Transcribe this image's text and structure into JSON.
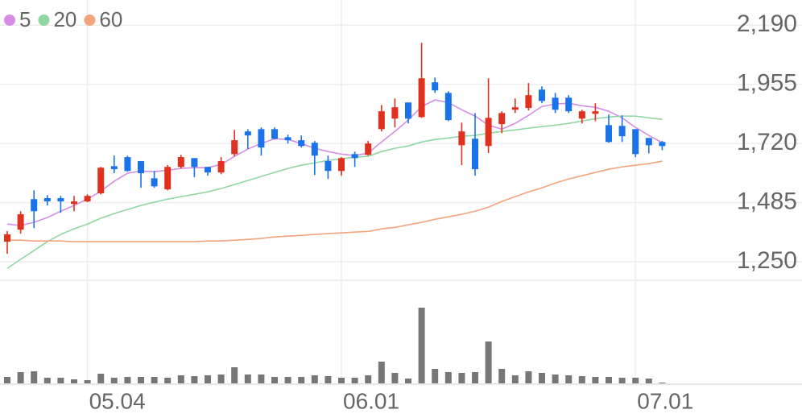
{
  "chart_data": {
    "type": "candlestick",
    "categories": [
      null,
      null,
      null,
      null,
      null,
      null,
      "05.04",
      null,
      null,
      null,
      null,
      null,
      null,
      null,
      null,
      null,
      null,
      null,
      null,
      null,
      null,
      null,
      null,
      null,
      null,
      "06.01",
      null,
      null,
      null,
      null,
      null,
      null,
      null,
      null,
      null,
      null,
      null,
      null,
      null,
      null,
      null,
      null,
      null,
      null,
      null,
      null,
      null,
      "07.01",
      null,
      null
    ],
    "open": [
      1330,
      1378,
      1499,
      1503,
      1503,
      1480,
      1490,
      1522,
      1630,
      1666,
      1650,
      1582,
      1538,
      1627,
      1662,
      1627,
      1605,
      1678,
      1768,
      1777,
      1777,
      1745,
      1733,
      1723,
      1650,
      1611,
      1678,
      1675,
      1777,
      1819,
      1883,
      1825,
      1963,
      1921,
      1713,
      1739,
      1710,
      1797,
      1854,
      1861,
      1934,
      1902,
      1902,
      1819,
      1838,
      1793,
      1790,
      1777,
      1742,
      1726
    ],
    "high": [
      1372,
      1451,
      1534,
      1515,
      1512,
      1512,
      1518,
      1627,
      1672,
      1672,
      1650,
      1611,
      1634,
      1675,
      1662,
      1627,
      1666,
      1774,
      1777,
      1784,
      1784,
      1755,
      1752,
      1730,
      1672,
      1666,
      1688,
      1730,
      1873,
      1899,
      1883,
      2120,
      1982,
      1928,
      1803,
      1841,
      1979,
      1848,
      1899,
      1960,
      1947,
      1921,
      1912,
      1854,
      1880,
      1835,
      1832,
      1777,
      1742,
      1730
    ],
    "low": [
      1282,
      1362,
      1384,
      1474,
      1445,
      1451,
      1487,
      1518,
      1602,
      1608,
      1544,
      1544,
      1534,
      1621,
      1586,
      1592,
      1598,
      1669,
      1698,
      1672,
      1736,
      1720,
      1704,
      1595,
      1579,
      1592,
      1627,
      1672,
      1768,
      1784,
      1800,
      1822,
      1921,
      1809,
      1634,
      1592,
      1682,
      1761,
      1841,
      1851,
      1880,
      1841,
      1841,
      1800,
      1809,
      1723,
      1726,
      1666,
      1681,
      1694
    ],
    "close": [
      1359,
      1439,
      1451,
      1490,
      1490,
      1490,
      1512,
      1624,
      1618,
      1611,
      1602,
      1550,
      1627,
      1666,
      1627,
      1605,
      1650,
      1733,
      1752,
      1704,
      1739,
      1733,
      1710,
      1672,
      1611,
      1662,
      1662,
      1720,
      1848,
      1864,
      1819,
      1979,
      1931,
      1813,
      1768,
      1618,
      1822,
      1841,
      1864,
      1912,
      1889,
      1854,
      1848,
      1848,
      1848,
      1726,
      1749,
      1678,
      1713,
      1710
    ],
    "up_color": "#e0301e",
    "down_color": "#1a73e8",
    "series": [
      {
        "name": "5",
        "color": "#d58de6",
        "values": [
          1400,
          1394,
          1407,
          1426,
          1451,
          1474,
          1499,
          1531,
          1570,
          1602,
          1611,
          1608,
          1614,
          1621,
          1624,
          1624,
          1637,
          1669,
          1698,
          1720,
          1739,
          1736,
          1720,
          1701,
          1688,
          1678,
          1672,
          1682,
          1726,
          1768,
          1813,
          1867,
          1893,
          1883,
          1854,
          1829,
          1793,
          1777,
          1800,
          1832,
          1867,
          1877,
          1880,
          1870,
          1864,
          1848,
          1822,
          1784,
          1752,
          1723
        ]
      },
      {
        "name": "20",
        "color": "#8fd6a2",
        "values": [
          1224,
          1260,
          1295,
          1330,
          1359,
          1381,
          1400,
          1423,
          1442,
          1458,
          1474,
          1487,
          1499,
          1509,
          1518,
          1528,
          1541,
          1557,
          1573,
          1589,
          1605,
          1621,
          1634,
          1643,
          1653,
          1659,
          1666,
          1669,
          1688,
          1701,
          1710,
          1726,
          1736,
          1742,
          1749,
          1752,
          1761,
          1768,
          1774,
          1781,
          1787,
          1793,
          1800,
          1809,
          1819,
          1825,
          1829,
          1829,
          1822,
          1816
        ]
      },
      {
        "name": "60",
        "color": "#f2a47c",
        "values": [
          1336,
          1336,
          1333,
          1333,
          1333,
          1330,
          1330,
          1330,
          1330,
          1330,
          1330,
          1330,
          1330,
          1330,
          1330,
          1333,
          1333,
          1336,
          1339,
          1343,
          1349,
          1352,
          1355,
          1359,
          1362,
          1365,
          1368,
          1371,
          1381,
          1387,
          1397,
          1407,
          1419,
          1429,
          1439,
          1451,
          1467,
          1490,
          1509,
          1528,
          1544,
          1563,
          1579,
          1592,
          1605,
          1618,
          1627,
          1634,
          1640,
          1650
        ]
      }
    ],
    "volume": {
      "color": "#777777",
      "ylim": [
        0,
        126
      ],
      "values": [
        8,
        14,
        15,
        7,
        7,
        5,
        4,
        12,
        7,
        8,
        8,
        8,
        7,
        10,
        9,
        10,
        11,
        20,
        11,
        11,
        8,
        8,
        8,
        10,
        9,
        7,
        7,
        10,
        27,
        13,
        6,
        94,
        18,
        14,
        13,
        14,
        52,
        18,
        10,
        15,
        13,
        11,
        10,
        9,
        8,
        8,
        7,
        7,
        6,
        1
      ]
    },
    "ylim": [
      1180,
      2290
    ],
    "yticks": [
      {
        "value": 1250,
        "label": "1,250"
      },
      {
        "value": 1485,
        "label": "1,485"
      },
      {
        "value": 1720,
        "label": "1,720"
      },
      {
        "value": 1955,
        "label": "1,955"
      },
      {
        "value": 2190,
        "label": "2,190"
      }
    ],
    "grid": true
  }
}
